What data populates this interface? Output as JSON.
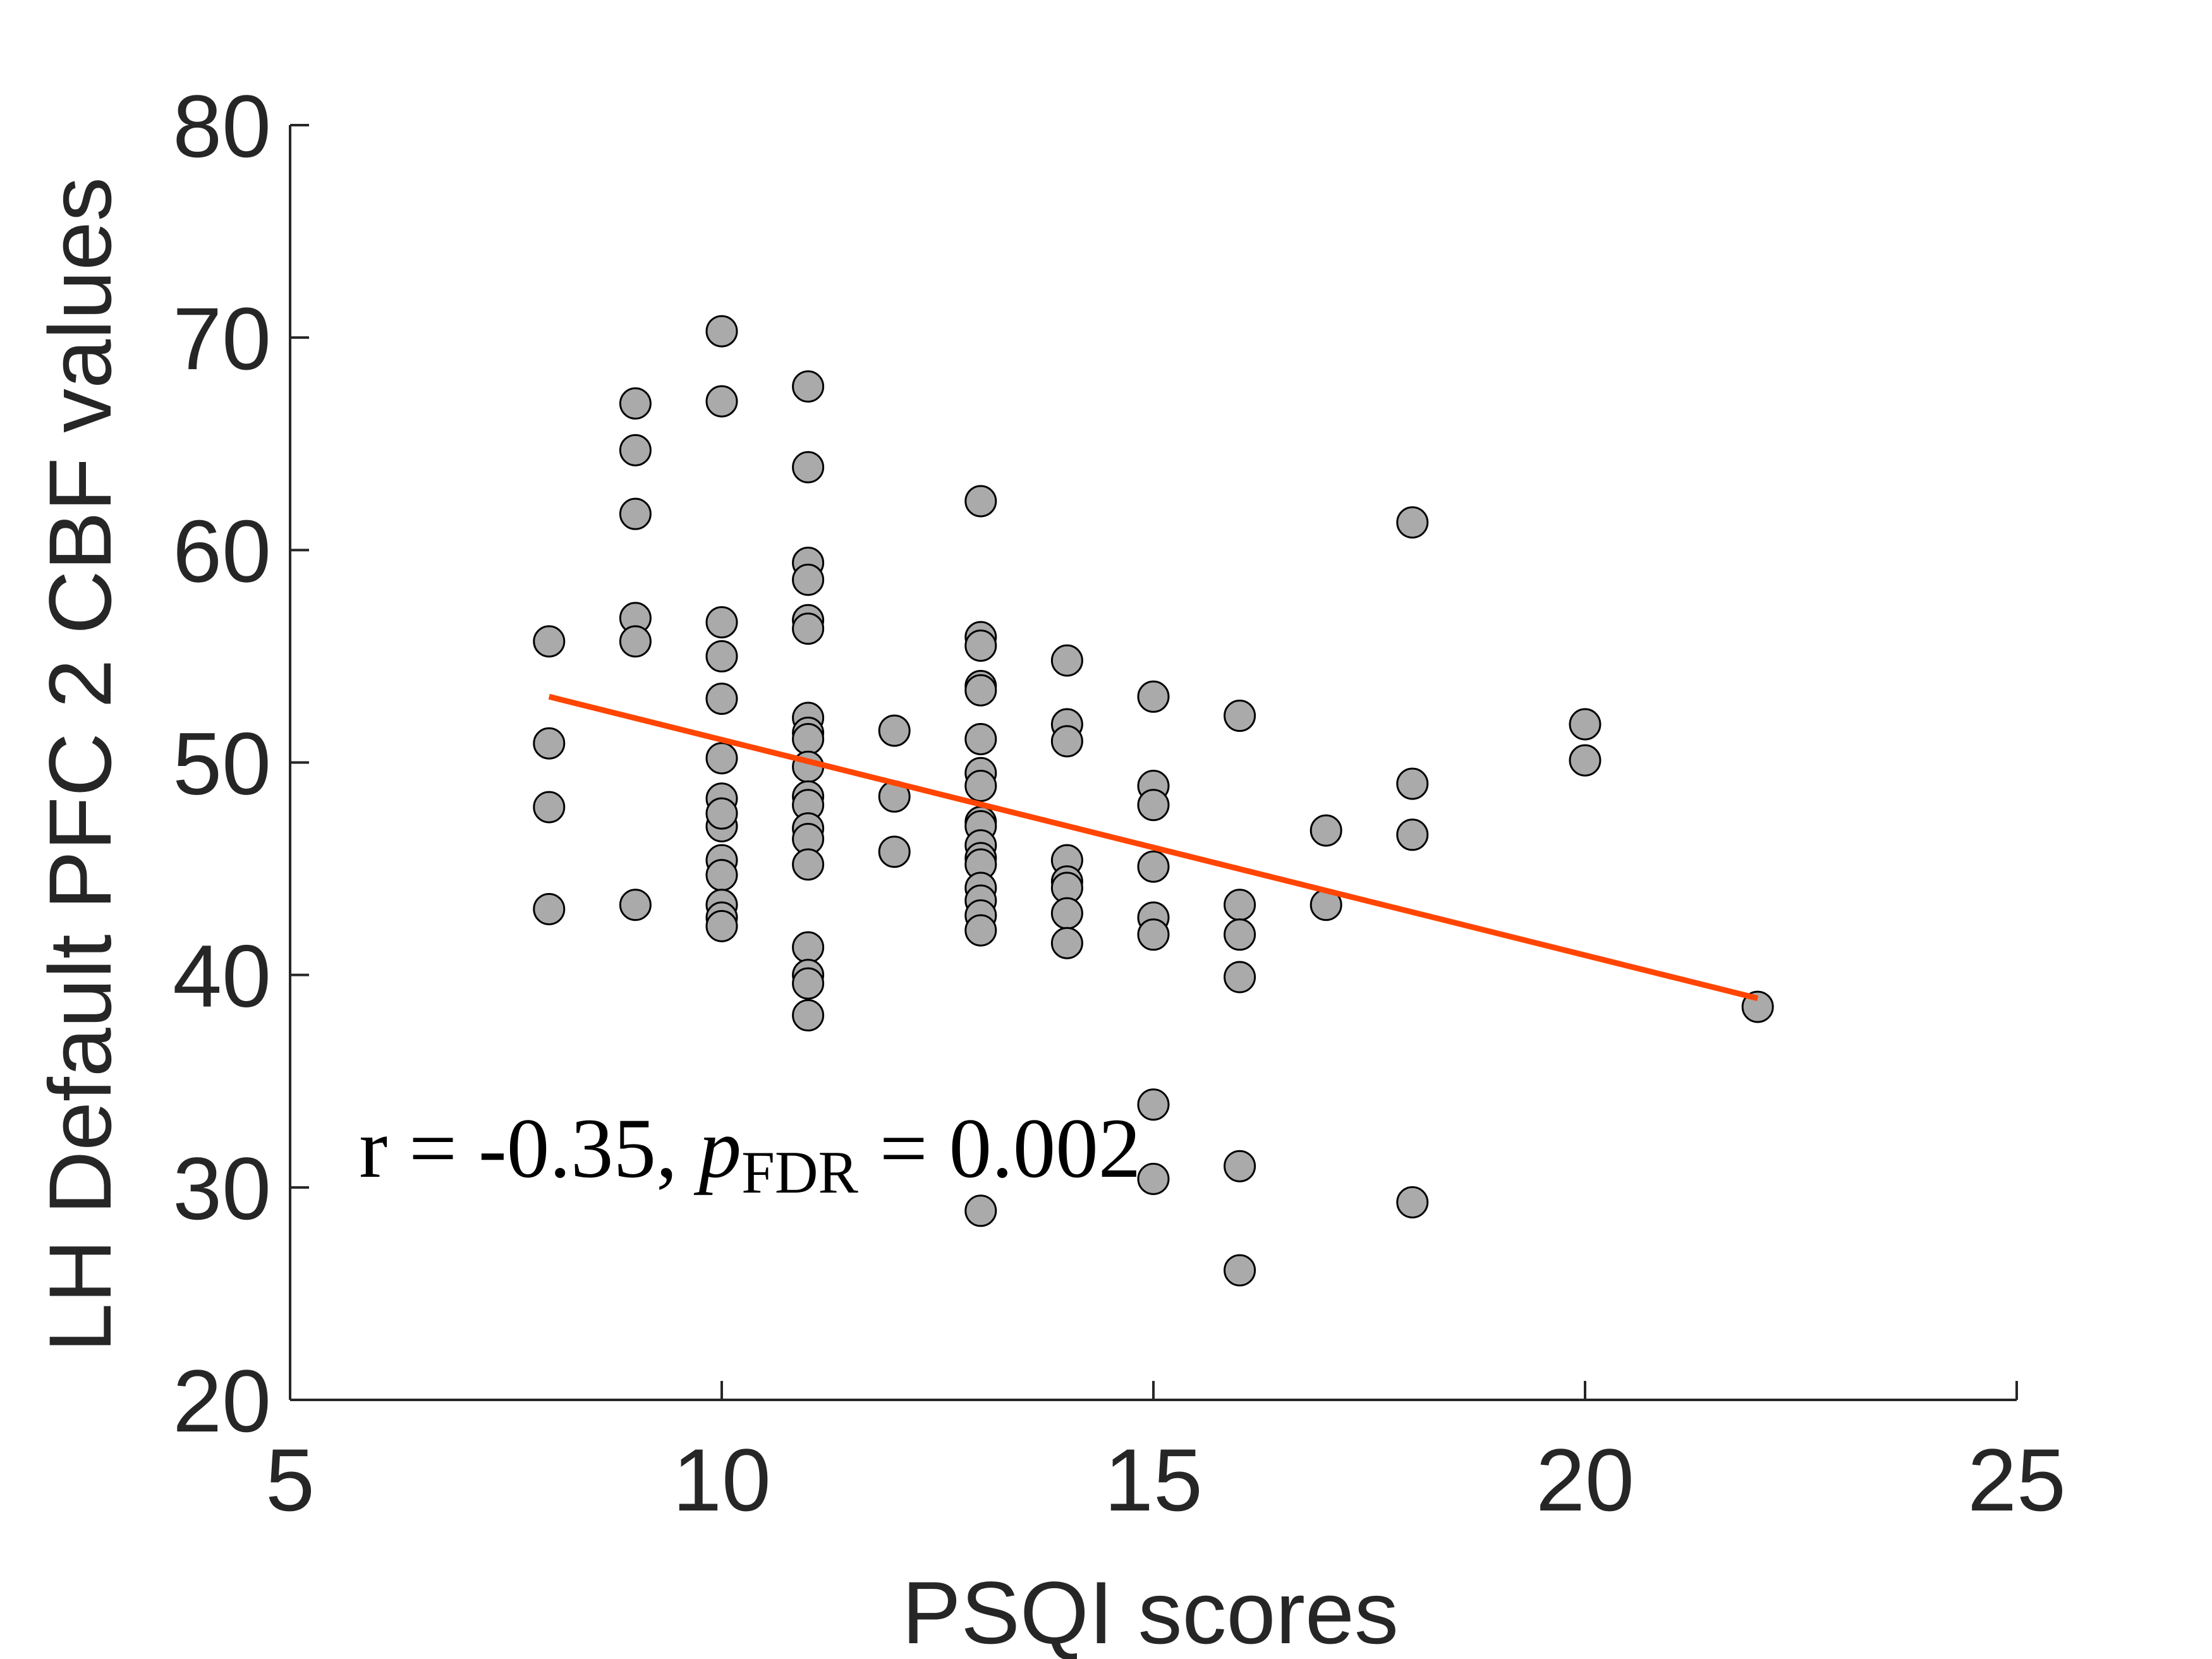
{
  "chart_data": {
    "type": "scatter",
    "xlabel": "PSQI scores",
    "ylabel": "LH Default PFC 2 CBF values",
    "xlim": [
      5,
      25
    ],
    "xticks": [
      5,
      10,
      15,
      20,
      25
    ],
    "ylim": [
      20,
      80
    ],
    "yticks": [
      20,
      30,
      40,
      50,
      60,
      70,
      80
    ],
    "annotation": {
      "parts": [
        "r = -0.35, ",
        "p",
        "FDR",
        " = 0.002"
      ],
      "x": 5.8,
      "y": 30.5
    },
    "series": [
      {
        "kind": "points",
        "color": "#aaaaaa",
        "x": [
          8,
          8,
          8,
          8,
          9,
          9,
          9,
          9,
          9,
          9,
          10,
          10,
          10,
          10,
          10,
          10,
          10,
          10,
          10,
          10,
          10,
          10,
          10,
          10,
          11,
          11,
          11,
          11,
          11,
          11,
          11,
          11,
          11,
          11,
          11,
          11,
          11,
          11,
          11,
          11,
          11,
          11,
          11,
          12,
          12,
          12,
          13,
          13,
          13,
          13,
          13,
          13,
          13,
          13,
          13,
          13,
          13,
          13,
          13,
          13,
          13,
          13,
          13,
          13,
          14,
          14,
          14,
          14,
          14,
          14,
          14,
          14,
          15,
          15,
          15,
          15,
          15,
          15,
          15,
          15,
          16,
          16,
          16,
          16,
          16,
          16,
          17,
          17,
          18,
          18,
          18,
          18,
          20,
          20,
          22
        ],
        "y": [
          55.7,
          50.9,
          47.9,
          43.1,
          66.9,
          64.7,
          61.7,
          56.8,
          55.7,
          43.3,
          70.3,
          67.0,
          56.6,
          55.0,
          53.0,
          50.2,
          48.3,
          47.0,
          47.6,
          45.4,
          44.7,
          43.3,
          42.7,
          42.3,
          67.7,
          63.9,
          59.4,
          58.6,
          56.7,
          56.3,
          52.1,
          51.4,
          51.1,
          49.8,
          48.4,
          48.0,
          46.9,
          46.4,
          45.2,
          41.3,
          40.0,
          39.6,
          38.1,
          51.5,
          48.4,
          45.8,
          62.3,
          55.9,
          55.5,
          53.6,
          53.4,
          51.1,
          49.5,
          48.9,
          47.2,
          47.0,
          46.1,
          45.5,
          45.2,
          44.1,
          43.5,
          42.8,
          42.1,
          28.9,
          54.8,
          51.8,
          51.0,
          45.4,
          44.4,
          44.1,
          42.9,
          41.5,
          53.1,
          48.9,
          48.0,
          45.1,
          42.7,
          41.9,
          33.9,
          30.4,
          52.2,
          43.3,
          41.9,
          39.9,
          31.0,
          26.1,
          46.8,
          43.3,
          61.3,
          49.0,
          46.6,
          29.3,
          51.8,
          50.1,
          38.5
        ]
      },
      {
        "kind": "line",
        "color": "#ff4500",
        "x": [
          8,
          22
        ],
        "y": [
          53.1,
          38.9
        ]
      }
    ]
  }
}
